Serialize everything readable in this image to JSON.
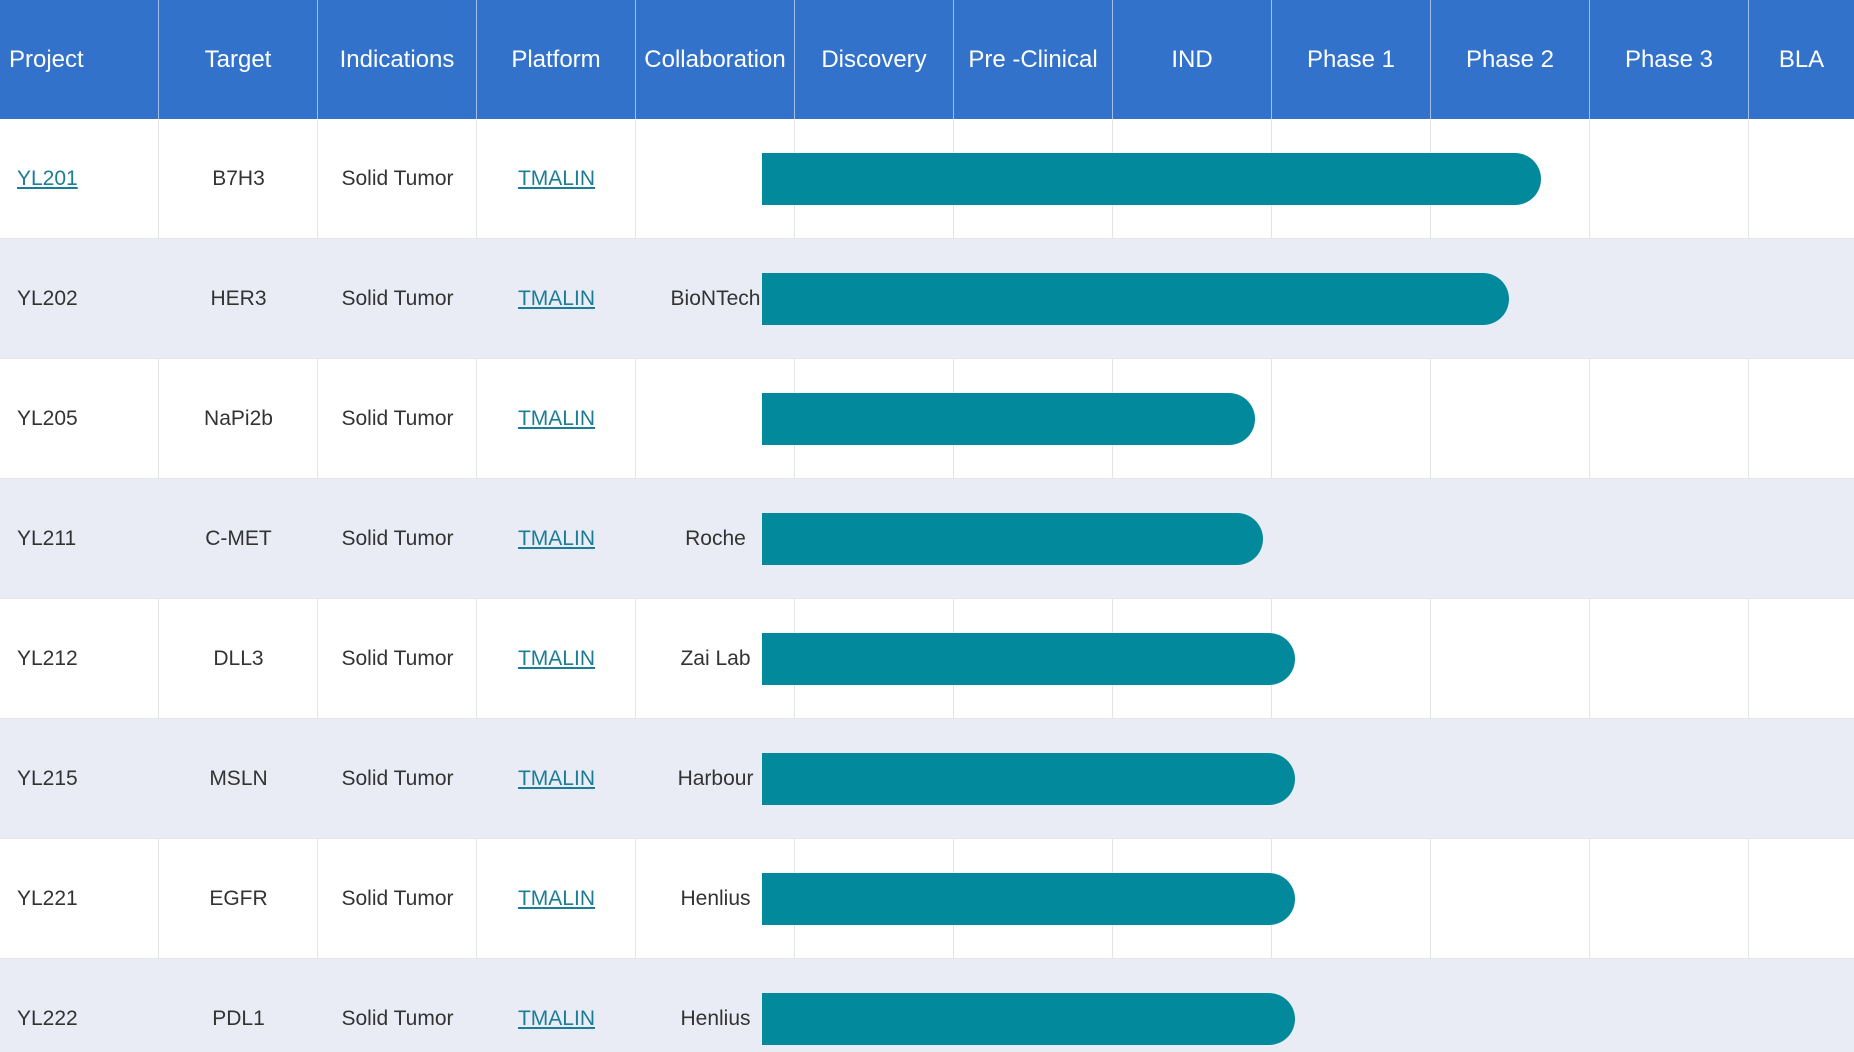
{
  "columns": [
    "Project",
    "Target",
    "Indications",
    "Platform",
    "Collaboration",
    "Discovery",
    "Pre -Clinical",
    "IND",
    "Phase 1",
    "Phase 2",
    "Phase 3",
    "BLA"
  ],
  "stage_count": 7,
  "colors": {
    "header_bg": "#3272cb",
    "bar": "#02899b",
    "alt_row_bg": "#e9ecf5",
    "link": "#1b7d96"
  },
  "rows": [
    {
      "project": "YL201",
      "project_is_link": true,
      "target": "B7H3",
      "indication": "Solid Tumor",
      "platform": "TMALIN",
      "collaboration": "",
      "progress_stages": 4.9
    },
    {
      "project": "YL202",
      "project_is_link": false,
      "target": "HER3",
      "indication": "Solid Tumor",
      "platform": "TMALIN",
      "collaboration": "BioNTech",
      "progress_stages": 4.7
    },
    {
      "project": "YL205",
      "project_is_link": false,
      "target": "NaPi2b",
      "indication": "Solid Tumor",
      "platform": "TMALIN",
      "collaboration": "",
      "progress_stages": 3.1
    },
    {
      "project": "YL211",
      "project_is_link": false,
      "target": "C-MET",
      "indication": "Solid Tumor",
      "platform": "TMALIN",
      "collaboration": "Roche",
      "progress_stages": 3.15
    },
    {
      "project": "YL212",
      "project_is_link": false,
      "target": "DLL3",
      "indication": "Solid Tumor",
      "platform": "TMALIN",
      "collaboration": "Zai Lab",
      "progress_stages": 3.35
    },
    {
      "project": "YL215",
      "project_is_link": false,
      "target": "MSLN",
      "indication": "Solid Tumor",
      "platform": "TMALIN",
      "collaboration": "Harbour",
      "progress_stages": 3.35
    },
    {
      "project": "YL221",
      "project_is_link": false,
      "target": "EGFR",
      "indication": "Solid Tumor",
      "platform": "TMALIN",
      "collaboration": "Henlius",
      "progress_stages": 3.35
    },
    {
      "project": "YL222",
      "project_is_link": false,
      "target": "PDL1",
      "indication": "Solid Tumor",
      "platform": "TMALIN",
      "collaboration": "Henlius",
      "progress_stages": 3.35
    }
  ]
}
